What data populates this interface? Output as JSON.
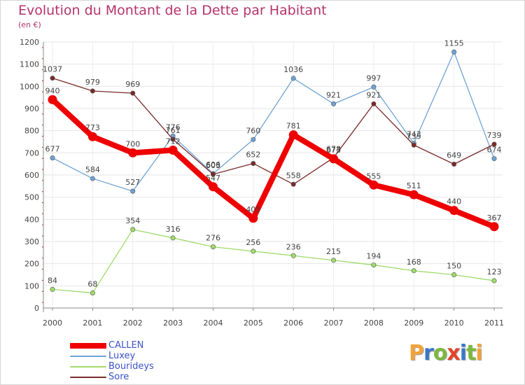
{
  "title": "Evolution du Montant de la Dette par Habitant",
  "subtitle": "(en €)",
  "logo": {
    "letters": [
      {
        "ch": "P",
        "color": "#f2a23a"
      },
      {
        "ch": "r",
        "color": "#3a78c6"
      },
      {
        "ch": "o",
        "color": "#7cb83f"
      },
      {
        "ch": "x",
        "color": "#e2432a"
      },
      {
        "ch": "i",
        "color": "#3a78c6"
      },
      {
        "ch": "t",
        "color": "#7cb83f"
      },
      {
        "ch": "i",
        "color": "#f2a23a"
      }
    ]
  },
  "chart_data": {
    "type": "line",
    "x": [
      "2000",
      "2001",
      "2002",
      "2003",
      "2004",
      "2005",
      "2006",
      "2007",
      "2008",
      "2009",
      "2010",
      "2011"
    ],
    "y_ticks": [
      0,
      100,
      200,
      300,
      400,
      500,
      600,
      700,
      800,
      900,
      1000,
      1100,
      1200
    ],
    "ylim": [
      0,
      1200
    ],
    "grid": true,
    "legend_position": "bottom-left",
    "series": [
      {
        "name": "CALLEN",
        "color": "#ee0000",
        "width": 8,
        "values": [
          940,
          773,
          700,
          712,
          547,
          405,
          781,
          673,
          555,
          511,
          440,
          367
        ]
      },
      {
        "name": "Luxey",
        "color": "#6fa3d4",
        "width": 1.3,
        "values": [
          677,
          584,
          527,
          776,
          606,
          760,
          1036,
          921,
          997,
          743,
          1155,
          674
        ]
      },
      {
        "name": "Bourideys",
        "color": "#9fdb6a",
        "width": 1.3,
        "values": [
          84,
          68,
          354,
          316,
          276,
          256,
          236,
          215,
          194,
          168,
          150,
          123
        ]
      },
      {
        "name": "Sore",
        "color": "#7a2a2a",
        "width": 1.3,
        "values": [
          1037,
          979,
          969,
          761,
          603,
          652,
          558,
          678,
          921,
          735,
          649,
          739
        ]
      }
    ]
  }
}
